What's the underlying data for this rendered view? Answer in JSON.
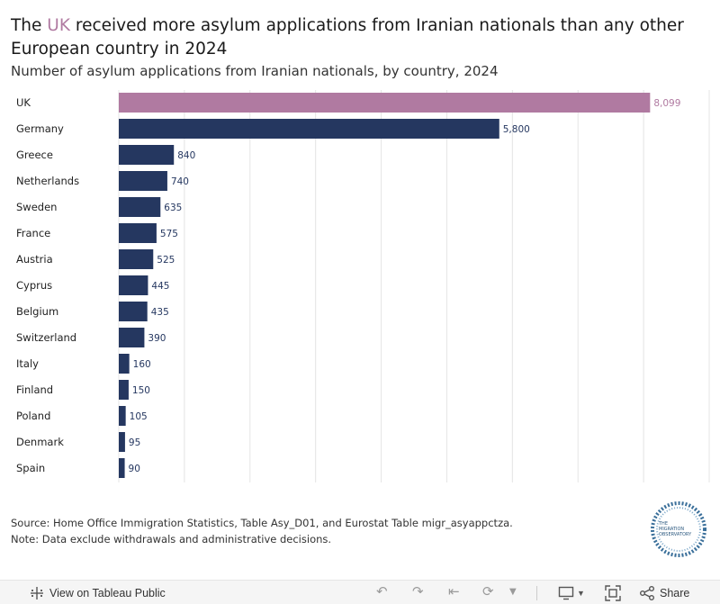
{
  "header": {
    "title_pre": "The ",
    "title_highlight": "UK",
    "title_post": " received more asylum applications from Iranian nationals than any other European country in 2024",
    "subtitle": "Number of asylum applications from Iranian nationals, by country, 2024"
  },
  "chart_data": {
    "type": "bar",
    "orientation": "horizontal",
    "title": "The UK received more asylum applications from Iranian nationals than any other European country in 2024",
    "subtitle": "Number of asylum applications from Iranian nationals, by country, 2024",
    "categories": [
      "UK",
      "Germany",
      "Greece",
      "Netherlands",
      "Sweden",
      "France",
      "Austria",
      "Cyprus",
      "Belgium",
      "Switzerland",
      "Italy",
      "Finland",
      "Poland",
      "Denmark",
      "Spain"
    ],
    "values": [
      8099,
      5800,
      840,
      740,
      635,
      575,
      525,
      445,
      435,
      390,
      160,
      150,
      105,
      95,
      90
    ],
    "value_labels": [
      "8,099",
      "5,800",
      "840",
      "740",
      "635",
      "575",
      "525",
      "445",
      "435",
      "390",
      "160",
      "150",
      "105",
      "95",
      "90"
    ],
    "highlight_category": "UK",
    "xlim": [
      0,
      9000
    ],
    "grid_step": 1000,
    "grid": true,
    "colors": {
      "highlight": "#b07aa1",
      "default": "#253760",
      "grid": "#e4e4e4"
    }
  },
  "footer": {
    "source": "Source: Home Office Immigration Statistics,  Table Asy_D01, and Eurostat Table migr_asyappctza.",
    "note": "Note: Data exclude withdrawals and administrative decisions.",
    "logo_line1": "THE",
    "logo_line2": "MIGRATION",
    "logo_line3": "OBSERVATORY"
  },
  "toolbar": {
    "view_label": "View on Tableau Public",
    "share_label": "Share",
    "icons": [
      "tableau-icon",
      "undo-icon",
      "redo-icon",
      "revert-icon",
      "refresh-icon",
      "download-icon",
      "fullscreen-icon",
      "share-icon"
    ]
  }
}
